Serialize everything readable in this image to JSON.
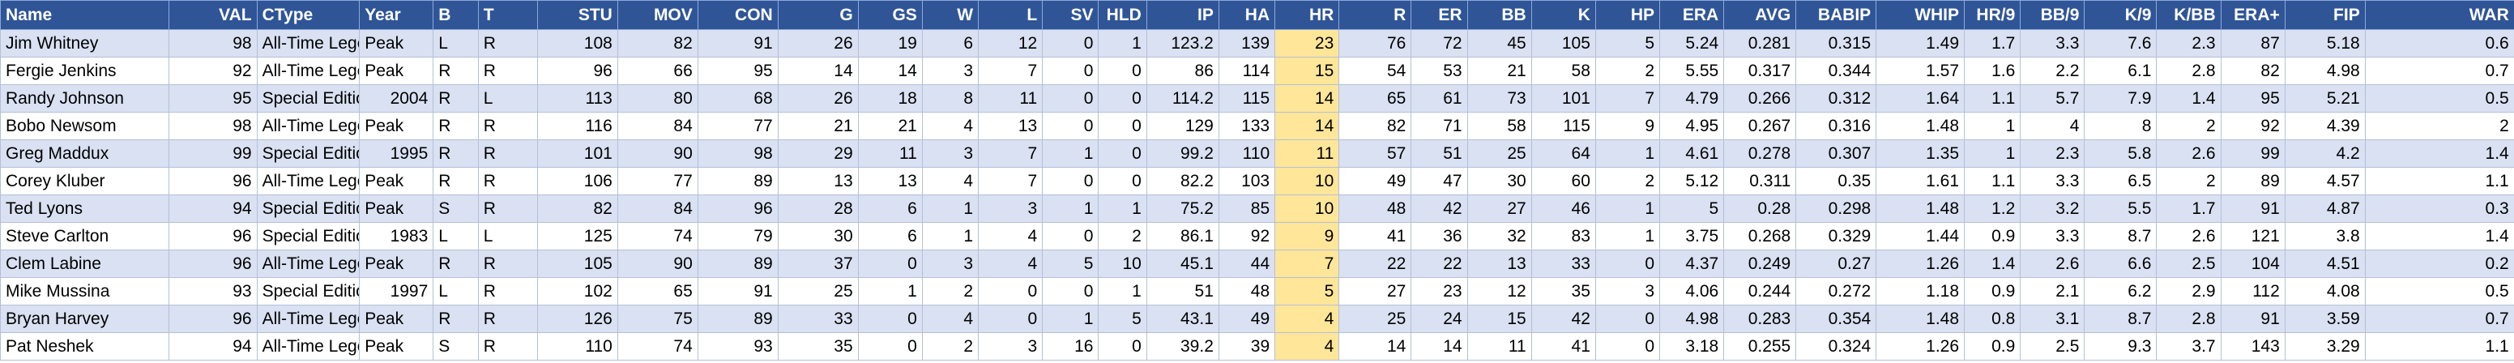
{
  "table": {
    "columns": [
      "Name",
      "VAL",
      "CType",
      "Year",
      "B",
      "T",
      "STU",
      "MOV",
      "CON",
      "G",
      "GS",
      "W",
      "L",
      "SV",
      "HLD",
      "IP",
      "HA",
      "HR",
      "R",
      "ER",
      "BB",
      "K",
      "HP",
      "ERA",
      "AVG",
      "BABIP",
      "WHIP",
      "HR/9",
      "BB/9",
      "K/9",
      "K/BB",
      "ERA+",
      "FIP",
      "WAR"
    ],
    "rows": [
      [
        "Jim Whitney",
        98,
        "All-Time Legend",
        "Peak",
        "L",
        "R",
        108,
        82,
        91,
        26,
        19,
        6,
        12,
        0,
        1,
        123.2,
        139,
        23,
        76,
        72,
        45,
        105,
        5,
        5.24,
        0.281,
        0.315,
        1.49,
        1.7,
        3.3,
        7.6,
        2.3,
        87,
        5.18,
        0.6
      ],
      [
        "Fergie Jenkins",
        92,
        "All-Time Legend",
        "Peak",
        "R",
        "R",
        96,
        66,
        95,
        14,
        14,
        3,
        7,
        0,
        0,
        86,
        114,
        15,
        54,
        53,
        21,
        58,
        2,
        5.55,
        0.317,
        0.344,
        1.57,
        1.6,
        2.2,
        6.1,
        2.8,
        82,
        4.98,
        0.7
      ],
      [
        "Randy Johnson",
        95,
        "Special Edition",
        2004,
        "R",
        "L",
        113,
        80,
        68,
        26,
        18,
        8,
        11,
        0,
        0,
        114.2,
        115,
        14,
        65,
        61,
        73,
        101,
        7,
        4.79,
        0.266,
        0.312,
        1.64,
        1.1,
        5.7,
        7.9,
        1.4,
        95,
        5.21,
        0.5
      ],
      [
        "Bobo Newsom",
        98,
        "All-Time Legend",
        "Peak",
        "R",
        "R",
        116,
        84,
        77,
        21,
        21,
        4,
        13,
        0,
        0,
        129,
        133,
        14,
        82,
        71,
        58,
        115,
        9,
        4.95,
        0.267,
        0.316,
        1.48,
        1,
        4,
        8,
        2,
        92,
        4.39,
        2
      ],
      [
        "Greg Maddux",
        99,
        "Special Edition",
        1995,
        "R",
        "R",
        101,
        90,
        98,
        29,
        11,
        3,
        7,
        1,
        0,
        99.2,
        110,
        11,
        57,
        51,
        25,
        64,
        1,
        4.61,
        0.278,
        0.307,
        1.35,
        1,
        2.3,
        5.8,
        2.6,
        99,
        4.2,
        1.4
      ],
      [
        "Corey Kluber",
        96,
        "All-Time Legend",
        "Peak",
        "R",
        "R",
        106,
        77,
        89,
        13,
        13,
        4,
        7,
        0,
        0,
        82.2,
        103,
        10,
        49,
        47,
        30,
        60,
        2,
        5.12,
        0.311,
        0.35,
        1.61,
        1.1,
        3.3,
        6.5,
        2,
        89,
        4.57,
        1.1
      ],
      [
        "Ted Lyons",
        94,
        "Special Edition",
        "Peak",
        "S",
        "R",
        82,
        84,
        96,
        28,
        6,
        1,
        3,
        1,
        1,
        75.2,
        85,
        10,
        48,
        42,
        27,
        46,
        1,
        5,
        0.28,
        0.298,
        1.48,
        1.2,
        3.2,
        5.5,
        1.7,
        91,
        4.87,
        0.3
      ],
      [
        "Steve Carlton",
        96,
        "Special Edition",
        1983,
        "L",
        "L",
        125,
        74,
        79,
        30,
        6,
        1,
        4,
        0,
        2,
        86.1,
        92,
        9,
        41,
        36,
        32,
        83,
        1,
        3.75,
        0.268,
        0.329,
        1.44,
        0.9,
        3.3,
        8.7,
        2.6,
        121,
        3.8,
        1.4
      ],
      [
        "Clem Labine",
        96,
        "All-Time Legend",
        "Peak",
        "R",
        "R",
        105,
        90,
        89,
        37,
        0,
        3,
        4,
        5,
        10,
        45.1,
        44,
        7,
        22,
        22,
        13,
        33,
        0,
        4.37,
        0.249,
        0.27,
        1.26,
        1.4,
        2.6,
        6.6,
        2.5,
        104,
        4.51,
        0.2
      ],
      [
        "Mike Mussina",
        93,
        "Special Edition",
        1997,
        "L",
        "R",
        102,
        65,
        91,
        25,
        1,
        2,
        0,
        0,
        1,
        51,
        48,
        5,
        27,
        23,
        12,
        35,
        3,
        4.06,
        0.244,
        0.272,
        1.18,
        0.9,
        2.1,
        6.2,
        2.9,
        112,
        4.08,
        0.5
      ],
      [
        "Bryan Harvey",
        96,
        "All-Time Legend",
        "Peak",
        "R",
        "R",
        126,
        75,
        89,
        33,
        0,
        4,
        0,
        1,
        5,
        43.1,
        49,
        4,
        25,
        24,
        15,
        42,
        0,
        4.98,
        0.283,
        0.354,
        1.48,
        0.8,
        3.1,
        8.7,
        2.8,
        91,
        3.59,
        0.7
      ],
      [
        "Pat Neshek",
        94,
        "All-Time Legend",
        "Peak",
        "S",
        "R",
        110,
        74,
        93,
        35,
        0,
        2,
        3,
        16,
        0,
        39.2,
        39,
        4,
        14,
        14,
        11,
        41,
        0,
        3.18,
        0.255,
        0.324,
        1.26,
        0.9,
        2.5,
        9.3,
        3.7,
        143,
        3.29,
        1.1
      ]
    ]
  }
}
